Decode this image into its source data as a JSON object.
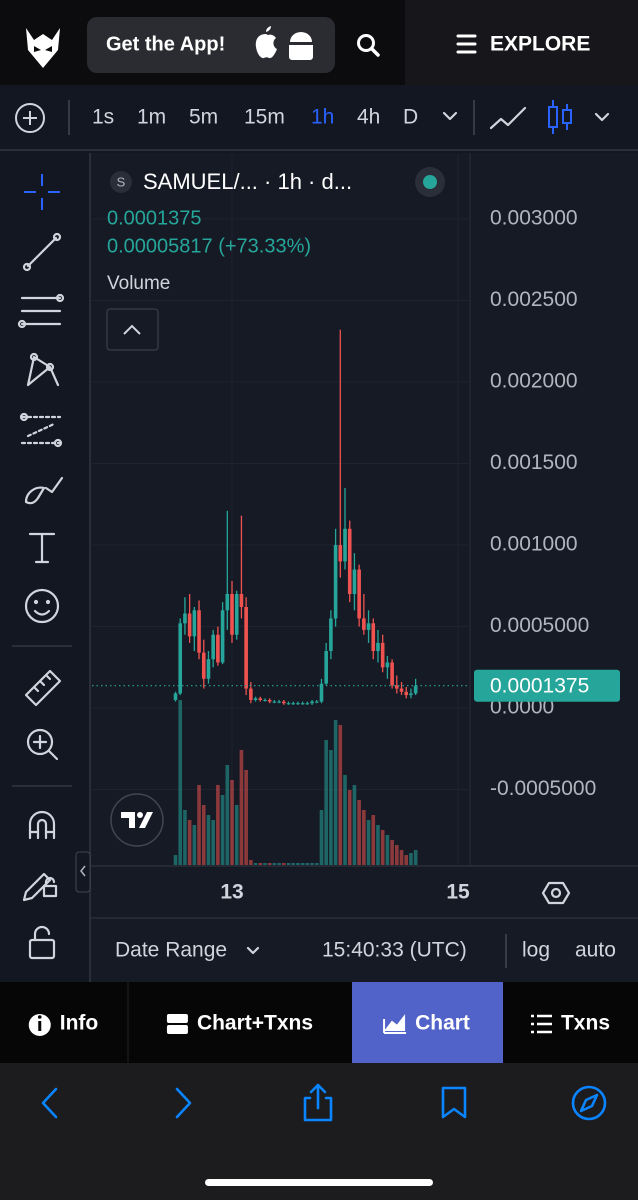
{
  "header": {
    "app_button": "Get the App!",
    "explore": "EXPLORE"
  },
  "toolbar": {
    "intervals": [
      "1s",
      "1m",
      "5m",
      "15m",
      "1h",
      "4h",
      "D"
    ],
    "active_interval": 4
  },
  "chart_data": {
    "type": "candlestick",
    "title": "SAMUEL/... · 1h · d...",
    "symbol_badge": "S",
    "change": "0.00005817 (+73.33%)",
    "volume_label": "Volume",
    "up_color": "#26a69a",
    "down_color": "#ef5350",
    "x": [
      12.5,
      12.5417,
      12.5833,
      12.625,
      12.6667,
      12.7083,
      12.75,
      12.7917,
      12.8333,
      12.875,
      12.9167,
      12.9583,
      13,
      13.0417,
      13.0833,
      13.125,
      13.1667,
      13.2083,
      13.25,
      13.2917,
      13.3333,
      13.375,
      13.4167,
      13.4583,
      13.5,
      13.5417,
      13.5833,
      13.625,
      13.6667,
      13.7083,
      13.75,
      13.7917,
      13.8333,
      13.875,
      13.9167,
      13.9583,
      14,
      14.0417,
      14.0833,
      14.125,
      14.1667,
      14.2083,
      14.25,
      14.2917,
      14.3333,
      14.375,
      14.4167,
      14.4583,
      14.5,
      14.5417,
      14.5833,
      14.625
    ],
    "open": [
      5e-05,
      9e-05,
      0.00052,
      0.00058,
      0.00044,
      0.0006,
      0.00034,
      0.00018,
      0.0003,
      0.00045,
      0.00028,
      0.0006,
      0.0007,
      0.00045,
      0.0007,
      0.00062,
      0.00012,
      5e-05,
      6e-05,
      5e-05,
      5e-05,
      4e-05,
      4e-05,
      4e-05,
      3e-05,
      3e-05,
      3e-05,
      3e-05,
      3e-05,
      3e-05,
      4e-05,
      4e-05,
      0.00015,
      0.00035,
      0.00055,
      0.001,
      0.0009,
      0.0011,
      0.0007,
      0.00085,
      0.00055,
      0.00048,
      0.00052,
      0.00035,
      0.0004,
      0.00025,
      0.00028,
      0.00014,
      0.00012,
      0.0001,
      8e-05,
      9e-05
    ],
    "high": [
      0.0001,
      0.00055,
      0.00068,
      0.0007,
      0.00062,
      0.00066,
      0.00042,
      0.00035,
      0.00048,
      0.0005,
      0.00065,
      0.00121,
      0.00078,
      0.00072,
      0.00118,
      0.00068,
      0.00016,
      7e-05,
      7e-05,
      6e-05,
      6e-05,
      5e-05,
      5e-05,
      5e-05,
      4e-05,
      4e-05,
      4e-05,
      4e-05,
      4e-05,
      5e-05,
      5e-05,
      0.00018,
      0.0004,
      0.0006,
      0.0011,
      0.00232,
      0.00135,
      0.00115,
      0.00095,
      0.00088,
      0.0007,
      0.0006,
      0.00055,
      0.00048,
      0.00045,
      0.00032,
      0.0003,
      0.0002,
      0.00016,
      0.00013,
      0.00012,
      0.00018
    ],
    "low": [
      4e-05,
      8e-05,
      0.00045,
      0.0004,
      0.00035,
      0.0003,
      0.00012,
      0.00015,
      0.00025,
      0.00026,
      0.00027,
      0.00048,
      0.0004,
      0.00042,
      0.00055,
      8e-05,
      3e-05,
      4e-05,
      4e-05,
      4e-05,
      3e-05,
      3e-05,
      3e-05,
      2e-05,
      2e-05,
      2e-05,
      2e-05,
      2e-05,
      2e-05,
      2e-05,
      3e-05,
      3e-05,
      0.00014,
      0.0003,
      0.0005,
      0.0008,
      0.00085,
      0.00065,
      0.0006,
      0.0005,
      0.00045,
      0.0004,
      0.0003,
      0.00028,
      0.00022,
      0.00018,
      0.00012,
      9e-05,
      8e-05,
      6e-05,
      6e-05,
      8e-05
    ],
    "close": [
      9e-05,
      0.00052,
      0.00058,
      0.00044,
      0.0006,
      0.00034,
      0.00018,
      0.0003,
      0.00045,
      0.00028,
      0.0006,
      0.0007,
      0.00045,
      0.0007,
      0.00062,
      0.00012,
      5e-05,
      6e-05,
      5e-05,
      5e-05,
      4e-05,
      4e-05,
      4e-05,
      3e-05,
      3e-05,
      3e-05,
      3e-05,
      3e-05,
      3e-05,
      4e-05,
      4e-05,
      0.00015,
      0.00035,
      0.00055,
      0.001,
      0.0009,
      0.0011,
      0.0007,
      0.00085,
      0.00055,
      0.00048,
      0.00052,
      0.00035,
      0.0004,
      0.00025,
      0.00028,
      0.00014,
      0.00012,
      0.0001,
      8e-05,
      9e-05,
      0.0001375
    ],
    "volume": [
      10,
      165,
      55,
      45,
      40,
      80,
      60,
      50,
      45,
      80,
      70,
      100,
      85,
      60,
      115,
      95,
      5,
      2,
      2,
      2,
      2,
      2,
      2,
      2,
      2,
      2,
      2,
      2,
      2,
      2,
      2,
      55,
      125,
      115,
      145,
      140,
      90,
      75,
      80,
      65,
      55,
      45,
      50,
      40,
      35,
      30,
      25,
      20,
      15,
      10,
      12,
      15
    ],
    "xlim": [
      11.761,
      15.106
    ],
    "xticks": [
      13,
      15
    ],
    "ylim": [
      -0.000962,
      0.003392
    ],
    "yticks": [
      {
        "value": -0.0005,
        "label": "-0.0005000"
      },
      {
        "value": 0,
        "label": "0.0000"
      },
      {
        "value": 0.0005,
        "label": "0.0005000"
      },
      {
        "value": 0.001,
        "label": "0.001000"
      },
      {
        "value": 0.0015,
        "label": "0.001500"
      },
      {
        "value": 0.002,
        "label": "0.002000"
      },
      {
        "value": 0.0025,
        "label": "0.002500"
      },
      {
        "value": 0.003,
        "label": "0.003000"
      }
    ],
    "grid": true
  },
  "footer": {
    "date_range": "Date Range",
    "time": "15:40:33 (UTC)",
    "log": "log",
    "auto": "auto"
  },
  "tabs": [
    "Info",
    "Chart+Txns",
    "Chart",
    "Txns"
  ],
  "active_tab": 2
}
